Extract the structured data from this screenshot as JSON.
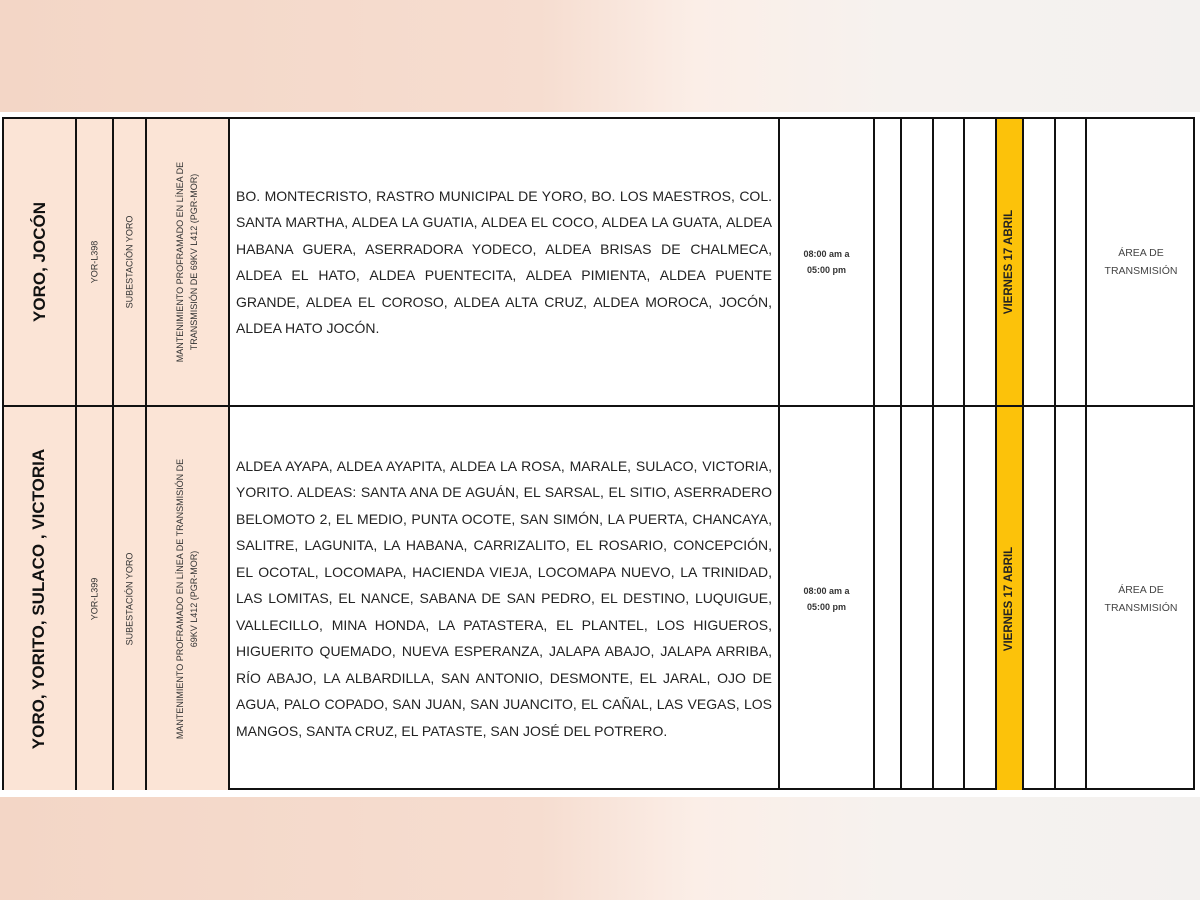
{
  "colors": {
    "location_bg": "#fbe4d6",
    "date_highlight": "#fcc20a"
  },
  "rows": [
    {
      "locations": "YORO, JOCÓN",
      "circuit": "YOR-L398",
      "substation": "SUBESTACIÓN YORO",
      "work_line1": "MANTENIMIENTO PROFRAMADO EN LÍNEA DE",
      "work_line2": "TRANSMISIÓN DE 69KV L412 (PGR-MOR)",
      "places": "BO. MONTECRISTO, RASTRO MUNICIPAL DE YORO, BO. LOS MAESTROS, COL. SANTA MARTHA, ALDEA LA GUATIA, ALDEA EL COCO, ALDEA LA GUATA, ALDEA HABANA GUERA, ASERRADORA YODECO, ALDEA BRISAS DE CHALMECA, ALDEA EL HATO, ALDEA PUENTECITA, ALDEA PIMIENTA, ALDEA PUENTE GRANDE, ALDEA EL COROSO, ALDEA ALTA CRUZ, ALDEA MOROCA, JOCÓN, ALDEA HATO JOCÓN.",
      "time_line1": "08:00 am a",
      "time_line2": "05:00 pm",
      "date": "VIERNES 17 ABRIL",
      "area_line1": "ÁREA DE",
      "area_line2": "TRANSMISIÓN"
    },
    {
      "locations": "YORO, YORITO, SULACO , VICTORIA",
      "circuit": "YOR-L399",
      "substation": "SUBESTACIÓN YORO",
      "work_line1": "MANTENIMIENTO PROFRAMADO EN LÍNEA DE TRANSMISIÓN DE",
      "work_line2": "69KV L412 (PGR-MOR)",
      "places": "ALDEA AYAPA, ALDEA AYAPITA, ALDEA LA ROSA, MARALE, SULACO, VICTORIA, YORITO. ALDEAS: SANTA ANA DE AGUÁN, EL SARSAL, EL SITIO, ASERRADERO BELOMOTO 2, EL MEDIO, PUNTA OCOTE, SAN SIMÓN, LA PUERTA, CHANCAYA, SALITRE, LAGUNITA, LA HABANA, CARRIZALITO, EL ROSARIO, CONCEPCIÓN, EL OCOTAL, LOCOMAPA, HACIENDA VIEJA, LOCOMAPA NUEVO, LA TRINIDAD, LAS LOMITAS, EL NANCE, SABANA DE SAN PEDRO, EL DESTINO, LUQUIGUE, VALLECILLO, MINA HONDA, LA PATASTERA, EL PLANTEL, LOS HIGUEROS, HIGUERITO QUEMADO, NUEVA ESPERANZA, JALAPA ABAJO, JALAPA ARRIBA, RÍO ABAJO, LA ALBARDILLA, SAN ANTONIO, DESMONTE, EL JARAL, OJO DE AGUA, PALO COPADO, SAN JUAN, SAN JUANCITO, EL CAÑAL, LAS VEGAS, LOS MANGOS, SANTA CRUZ, EL PATASTE, SAN JOSÉ DEL POTRERO.",
      "time_line1": "08:00 am a",
      "time_line2": "05:00 pm",
      "date": "VIERNES 17 ABRIL",
      "area_line1": "ÁREA DE",
      "area_line2": "TRANSMISIÓN"
    }
  ]
}
